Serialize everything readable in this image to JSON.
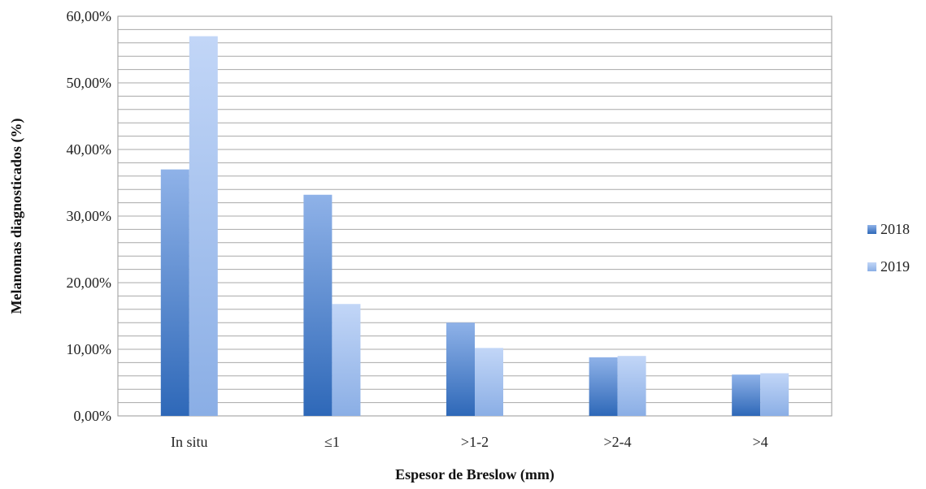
{
  "chart_data": {
    "type": "bar",
    "title": "",
    "xlabel": "Espesor de Breslow (mm)",
    "ylabel": "Melanomas diagnosticados (%)",
    "categories": [
      "In situ",
      "≤1",
      ">1-2",
      ">2-4",
      ">4"
    ],
    "series": [
      {
        "name": "2018",
        "values": [
          37.0,
          33.2,
          14.0,
          8.8,
          6.2
        ],
        "color_top": "#8fb2e8",
        "color_bottom": "#2e68b8"
      },
      {
        "name": "2019",
        "values": [
          57.0,
          16.8,
          10.2,
          9.0,
          6.4
        ],
        "color_top": "#c2d6f7",
        "color_bottom": "#8aaee5"
      }
    ],
    "ylim": [
      0,
      60
    ],
    "yticks": [
      "0,00%",
      "10,00%",
      "20,00%",
      "30,00%",
      "40,00%",
      "50,00%",
      "60,00%"
    ],
    "ytick_values": [
      0,
      10,
      20,
      30,
      40,
      50,
      60
    ],
    "minor_gridline_step": 2,
    "grid": true,
    "legend_position": "right"
  }
}
